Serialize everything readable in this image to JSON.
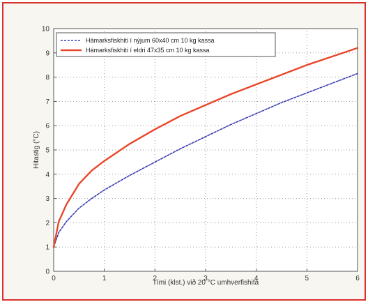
{
  "chart_data": {
    "type": "line",
    "title": "",
    "xlabel": "Tími (klst.) við 20 °C umhverfishita",
    "ylabel": "Hitastig (°C)",
    "xlim": [
      0,
      6
    ],
    "ylim": [
      0,
      10
    ],
    "xticks": [
      "0",
      "1",
      "2",
      "3",
      "4",
      "5",
      "6"
    ],
    "yticks": [
      "0",
      "1",
      "2",
      "3",
      "4",
      "5",
      "6",
      "7",
      "8",
      "9",
      "10"
    ],
    "grid": true,
    "legend_position": "top-left",
    "series": [
      {
        "name": "Hámarksfiskhiti í nýjum 60x40 cm 10 kg kassa",
        "color": "#3b3fb0",
        "style": "dashed",
        "x": [
          0,
          0.1,
          0.25,
          0.5,
          0.75,
          1,
          1.5,
          2,
          2.5,
          3,
          3.5,
          4,
          4.5,
          5,
          5.5,
          6
        ],
        "y": [
          1.0,
          1.6,
          2.05,
          2.6,
          3.0,
          3.35,
          3.95,
          4.5,
          5.05,
          5.55,
          6.05,
          6.5,
          6.95,
          7.35,
          7.75,
          8.15
        ]
      },
      {
        "name": "Hámarksfiskhiti í eldri 47x35 cm 10 kg kassa",
        "color": "#e8472a",
        "style": "solid",
        "x": [
          0,
          0.1,
          0.25,
          0.5,
          0.75,
          1,
          1.5,
          2,
          2.5,
          3,
          3.5,
          4,
          4.5,
          5,
          5.5,
          6
        ],
        "y": [
          1.0,
          2.05,
          2.75,
          3.6,
          4.15,
          4.55,
          5.25,
          5.85,
          6.4,
          6.85,
          7.3,
          7.7,
          8.1,
          8.5,
          8.85,
          9.2
        ]
      }
    ]
  }
}
